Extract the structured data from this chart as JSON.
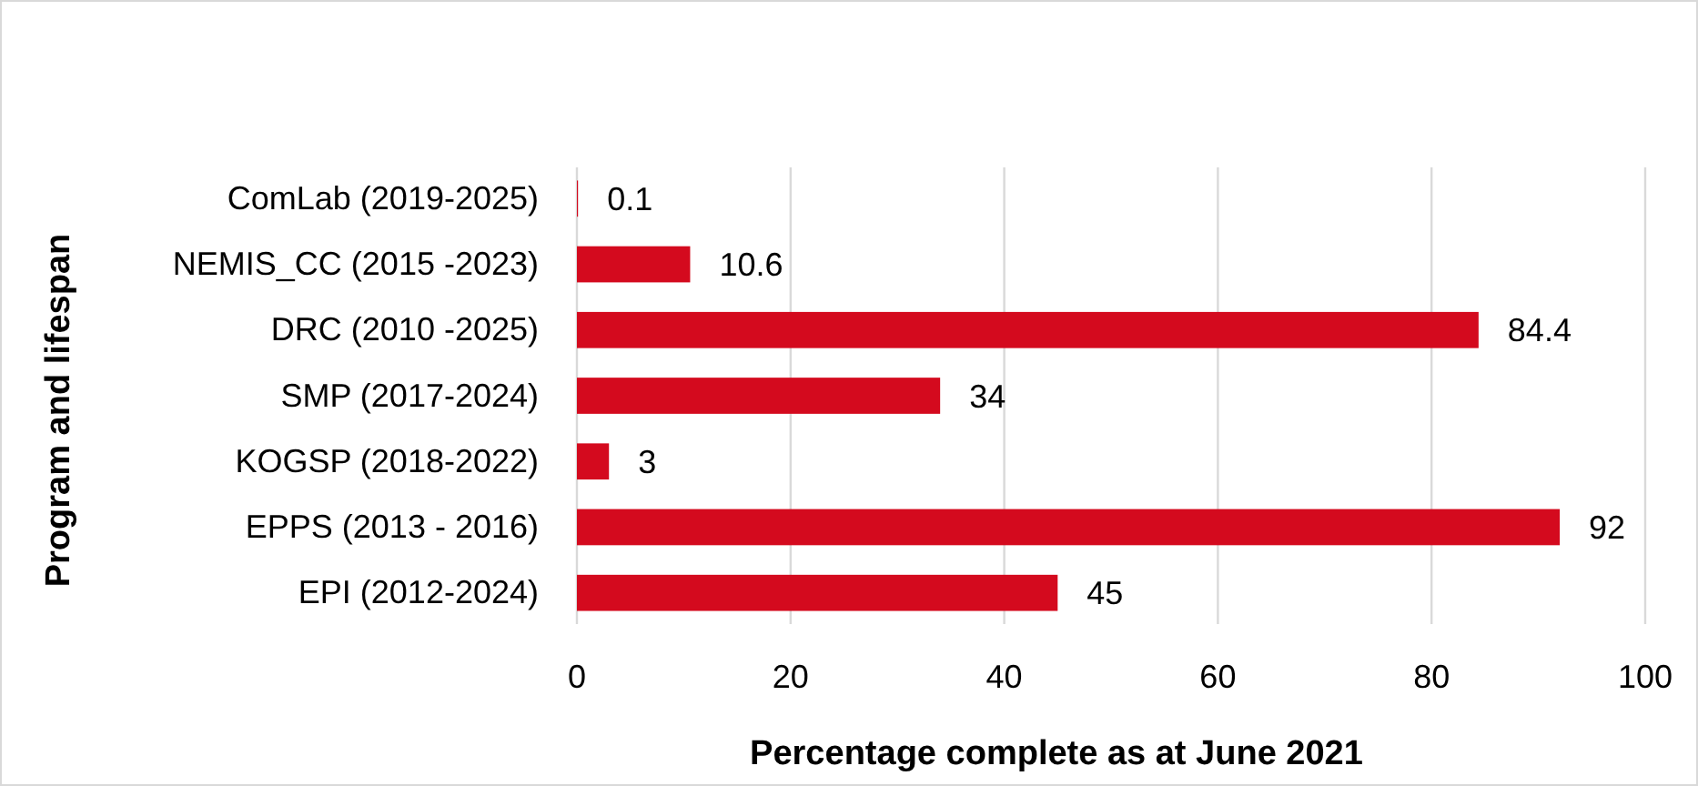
{
  "chart_data": {
    "type": "bar",
    "orientation": "horizontal",
    "xlabel": "Percentage complete as at June 2021",
    "ylabel": "Program and lifespan",
    "categories": [
      "ComLab (2019-2025)",
      "NEMIS_CC (2015 -2023)",
      "DRC (2010 -2025)",
      "SMP (2017-2024)",
      "KOGSP (2018-2022)",
      "EPPS (2013 - 2016)",
      "EPI (2012-2024)"
    ],
    "values": [
      0.1,
      10.6,
      84.4,
      34,
      3,
      92,
      45
    ],
    "color": "#d40a1e",
    "xlim": [
      0,
      100
    ],
    "xticks": [
      0,
      20,
      40,
      60,
      80,
      100
    ],
    "grid": "x",
    "data_labels": true
  }
}
